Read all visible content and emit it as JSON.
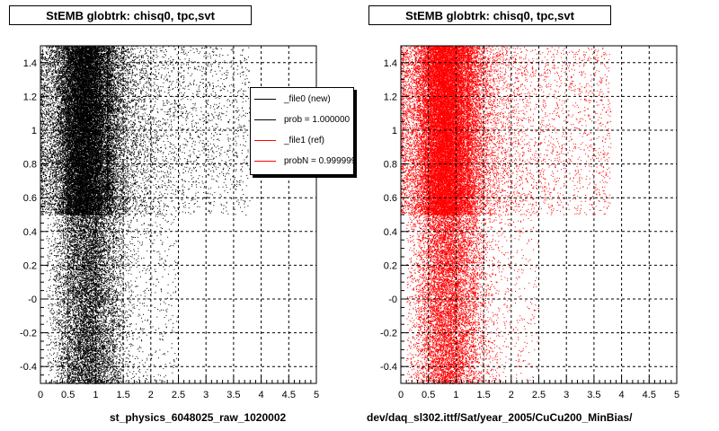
{
  "charts": [
    {
      "title": "StEMB globtrk: chisq0, tpc,svt",
      "footer": "st_physics_6048025_raw_1020002",
      "color": "#000000"
    },
    {
      "title": "StEMB globtrk: chisq0, tpc,svt",
      "footer": "dev/daq_sl302.ittf/Sat/year_2005/CuCu200_MinBias/",
      "color": "#ff0000"
    }
  ],
  "legend": {
    "entries": [
      {
        "label": "_file0 (new)",
        "color": "#000000"
      },
      {
        "label": "prob = 1.000000",
        "color": "#000000"
      },
      {
        "label": "_file1 (ref)",
        "color": "#ff0000"
      },
      {
        "label": "probN = 0.999999",
        "color": "#ff0000"
      }
    ]
  },
  "chart_data": [
    {
      "type": "scatter",
      "title": "StEMB globtrk: chisq0, tpc,svt",
      "xlabel": "st_physics_6048025_raw_1020002",
      "ylabel": "",
      "xlim": [
        0,
        5
      ],
      "ylim": [
        -0.5,
        1.5
      ],
      "xticks": [
        "0",
        "0.5",
        "1",
        "1.5",
        "2",
        "2.5",
        "3",
        "3.5",
        "4",
        "4.5",
        "5"
      ],
      "yticks": [
        "-0.4",
        "-0.2",
        "-0",
        "0.2",
        "0.4",
        "0.6",
        "0.8",
        "1",
        "1.2",
        "1.4"
      ],
      "grid": true,
      "series_color": "#000000",
      "density": {
        "upper_band": {
          "y": [
            0.5,
            1.5
          ],
          "peak_x": 0.8,
          "spread": 0.45,
          "tail_to_x": 3.0
        },
        "lower_band": {
          "y": [
            -0.5,
            0.5
          ],
          "peak_x": 0.85,
          "spread": 0.3,
          "tail_to_x": 1.6
        }
      }
    },
    {
      "type": "scatter",
      "title": "StEMB globtrk: chisq0, tpc,svt",
      "xlabel": "dev/daq_sl302.ittf/Sat/year_2005/CuCu200_MinBias/",
      "ylabel": "",
      "xlim": [
        0,
        5
      ],
      "ylim": [
        -0.5,
        1.5
      ],
      "xticks": [
        "0",
        "0.5",
        "1",
        "1.5",
        "2",
        "2.5",
        "3",
        "3.5",
        "4",
        "4.5",
        "5"
      ],
      "yticks": [
        "-0.4",
        "-0.2",
        "-0",
        "0.2",
        "0.4",
        "0.6",
        "0.8",
        "1",
        "1.2",
        "1.4"
      ],
      "grid": true,
      "series_color": "#ff0000",
      "density": {
        "upper_band": {
          "y": [
            0.5,
            1.5
          ],
          "peak_x": 0.8,
          "spread": 0.45,
          "tail_to_x": 3.0
        },
        "lower_band": {
          "y": [
            -0.5,
            0.5
          ],
          "peak_x": 0.85,
          "spread": 0.3,
          "tail_to_x": 1.6
        }
      }
    }
  ]
}
